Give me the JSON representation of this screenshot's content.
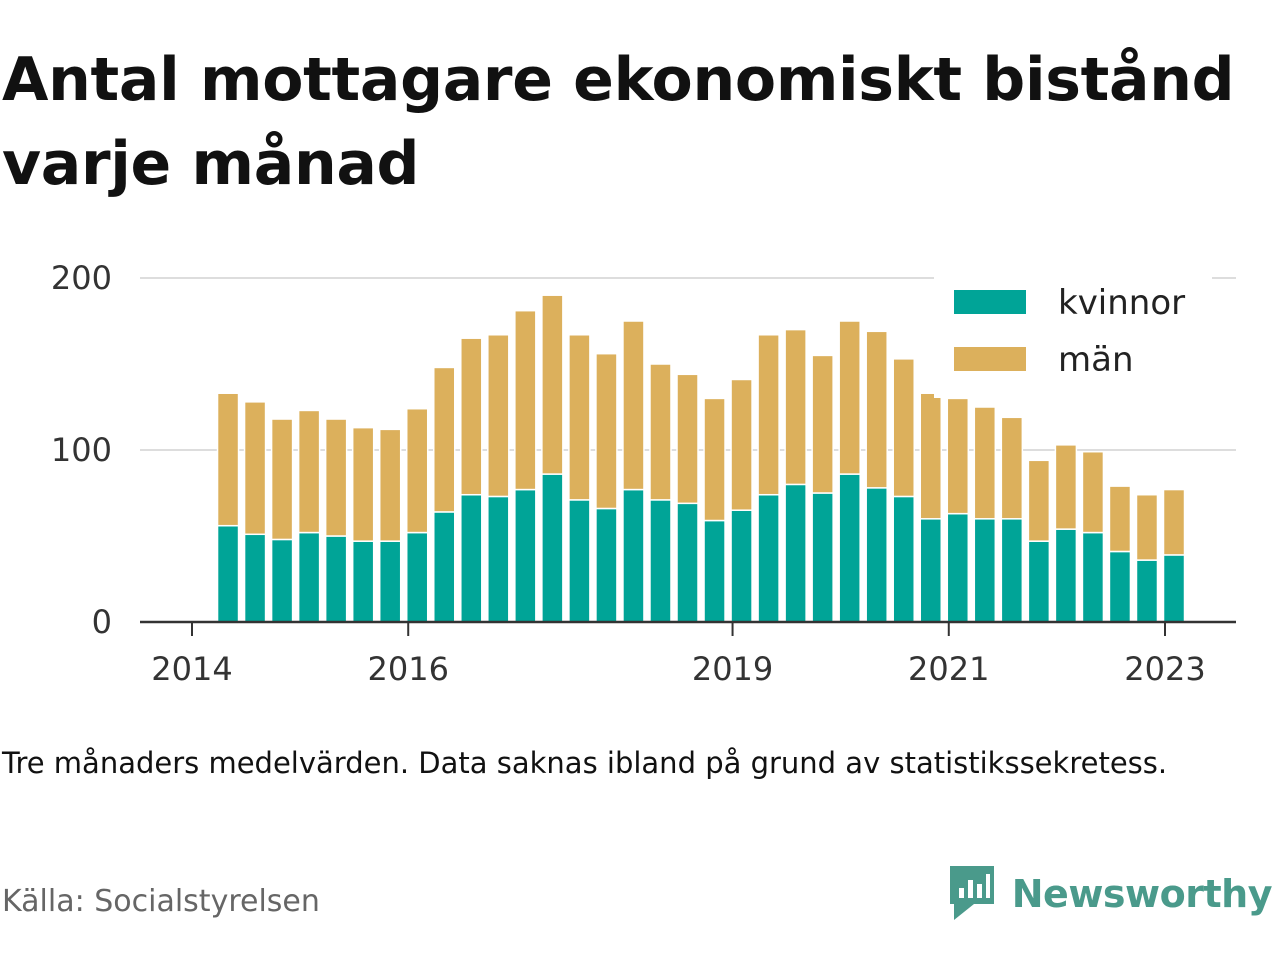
{
  "title": "Antal mottagare ekonomiskt bistånd varje månad",
  "note": "Tre månaders medelvärden. Data saknas ibland på grund av statistikssekretess.",
  "source": "Källa: Socialstyrelsen",
  "brand": {
    "name": "Newsworthy",
    "icon": "newsworthy-logo-icon",
    "color": "#4a9a8b"
  },
  "chart_data": {
    "type": "bar",
    "stacked": true,
    "grid": true,
    "legend_position": "top-right",
    "ylim": [
      0,
      200
    ],
    "yticks": [
      0,
      100,
      200
    ],
    "xticks": [
      "2014",
      "2016",
      "2019",
      "2021",
      "2023"
    ],
    "x": [
      "2014-05",
      "2014-08",
      "2014-11",
      "2015-02",
      "2015-05",
      "2015-08",
      "2015-11",
      "2016-02",
      "2016-05",
      "2016-08",
      "2016-11",
      "2017-02",
      "2017-05",
      "2017-08",
      "2017-11",
      "2018-02",
      "2018-05",
      "2018-08",
      "2018-11",
      "2019-02",
      "2019-05",
      "2019-08",
      "2019-11",
      "2020-02",
      "2020-05",
      "2020-08",
      "2020-11",
      "2021-02",
      "2021-05",
      "2021-08",
      "2021-11",
      "2022-02",
      "2022-05",
      "2022-08",
      "2022-11",
      "2023-02",
      "2023-05"
    ],
    "series": [
      {
        "name": "kvinnor",
        "color": "#00a497",
        "values": [
          56,
          51,
          48,
          52,
          50,
          47,
          47,
          52,
          64,
          74,
          73,
          77,
          86,
          71,
          66,
          77,
          71,
          69,
          59,
          65,
          74,
          80,
          75,
          86,
          78,
          73,
          60,
          63,
          60,
          60,
          47,
          54,
          52,
          41,
          36,
          39,
          0
        ]
      },
      {
        "name": "män",
        "color": "#dcb05c",
        "values": [
          77,
          77,
          70,
          71,
          68,
          66,
          65,
          72,
          84,
          91,
          94,
          104,
          104,
          96,
          90,
          98,
          79,
          75,
          71,
          76,
          93,
          90,
          80,
          89,
          91,
          80,
          73,
          67,
          65,
          59,
          47,
          49,
          47,
          38,
          38,
          38,
          0
        ]
      }
    ]
  }
}
